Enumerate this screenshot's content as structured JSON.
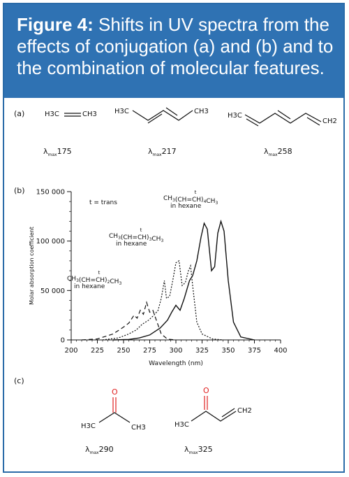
{
  "figure": {
    "label": "Figure 4:",
    "caption": "Shifts in UV spectra from the effects of conjugation (a) and (b) and to the combination of molecular features."
  },
  "panel_a": {
    "label": "(a)",
    "molecules": [
      {
        "left": "H3C",
        "right": "CH3",
        "lambda_value": "175"
      },
      {
        "left": "H3C",
        "right": "CH3",
        "lambda_value": "217"
      },
      {
        "left": "H3C",
        "right": "CH2",
        "lambda_value": "258"
      }
    ],
    "lambda_symbol": "λ",
    "lambda_subscript": "max"
  },
  "panel_b": {
    "label": "(b)"
  },
  "panel_c": {
    "label": "(c)",
    "molecules": [
      {
        "oxygen": "O",
        "left": "H3C",
        "right": "CH3",
        "lambda_value": "290"
      },
      {
        "oxygen": "O",
        "left": "H3C",
        "right": "CH2",
        "lambda_value": "325"
      }
    ]
  },
  "chart_data": {
    "type": "line",
    "xlabel": "Wavelength (nm)",
    "ylabel": "Molar absorption coefficient",
    "xlim": [
      200,
      400
    ],
    "ylim": [
      0,
      150000
    ],
    "x_ticks": [
      200,
      225,
      250,
      275,
      300,
      325,
      350,
      375,
      400
    ],
    "y_ticks": [
      0,
      50000,
      100000,
      150000
    ],
    "y_tick_labels": [
      "0",
      "50 000",
      "100 000",
      "150 000"
    ],
    "grid": false,
    "annotation": "t = trans",
    "series": [
      {
        "name": "CH3(CH=CH)2CH3 in hexane",
        "style": "dashed",
        "points": [
          [
            210,
            0
          ],
          [
            225,
            1000
          ],
          [
            240,
            6000
          ],
          [
            250,
            13000
          ],
          [
            255,
            17000
          ],
          [
            260,
            25000
          ],
          [
            263,
            22000
          ],
          [
            266,
            30000
          ],
          [
            269,
            26000
          ],
          [
            272,
            38000
          ],
          [
            275,
            28000
          ],
          [
            278,
            30000
          ],
          [
            282,
            18000
          ],
          [
            286,
            6000
          ],
          [
            292,
            800
          ],
          [
            300,
            0
          ]
        ]
      },
      {
        "name": "CH3(CH=CH)3CH3 in hexane",
        "style": "dotted",
        "points": [
          [
            230,
            0
          ],
          [
            245,
            2000
          ],
          [
            255,
            6000
          ],
          [
            262,
            10000
          ],
          [
            268,
            16000
          ],
          [
            274,
            20000
          ],
          [
            279,
            25000
          ],
          [
            283,
            30000
          ],
          [
            286,
            42000
          ],
          [
            289,
            60000
          ],
          [
            291,
            42000
          ],
          [
            294,
            44000
          ],
          [
            297,
            60000
          ],
          [
            300,
            78000
          ],
          [
            303,
            80000
          ],
          [
            306,
            55000
          ],
          [
            309,
            58000
          ],
          [
            312,
            70000
          ],
          [
            314,
            75000
          ],
          [
            316,
            55000
          ],
          [
            320,
            18000
          ],
          [
            325,
            6000
          ],
          [
            335,
            1000
          ],
          [
            345,
            0
          ]
        ]
      },
      {
        "name": "CH3(CH=CH)4CH3 in hexane",
        "style": "solid",
        "points": [
          [
            240,
            0
          ],
          [
            255,
            500
          ],
          [
            265,
            2000
          ],
          [
            275,
            5000
          ],
          [
            285,
            12000
          ],
          [
            292,
            20000
          ],
          [
            296,
            28000
          ],
          [
            300,
            35000
          ],
          [
            304,
            30000
          ],
          [
            308,
            42000
          ],
          [
            313,
            60000
          ],
          [
            316,
            65000
          ],
          [
            320,
            80000
          ],
          [
            324,
            104000
          ],
          [
            327,
            118000
          ],
          [
            330,
            112000
          ],
          [
            334,
            70000
          ],
          [
            337,
            74000
          ],
          [
            340,
            108000
          ],
          [
            343,
            120000
          ],
          [
            346,
            110000
          ],
          [
            350,
            60000
          ],
          [
            355,
            18000
          ],
          [
            362,
            3000
          ],
          [
            375,
            0
          ]
        ]
      }
    ],
    "curve_labels": [
      {
        "formula": "CH3(CH=CH)2CH3",
        "note": "in hexane",
        "marker": "t"
      },
      {
        "formula": "CH3(CH=CH)3CH3",
        "note": "in hexane",
        "marker": "t"
      },
      {
        "formula": "CH3(CH=CH)4CH3",
        "note": "in hexane",
        "marker": "t"
      }
    ]
  }
}
